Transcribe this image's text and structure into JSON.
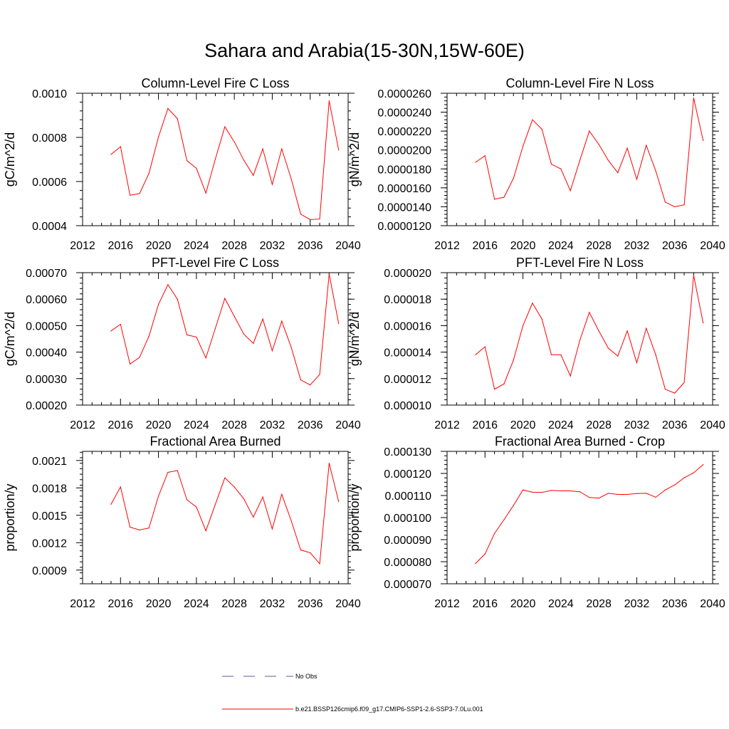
{
  "figure": {
    "title": "Sahara and Arabia(15-30N,15W-60E)",
    "line_color": "#ff0000",
    "obs_color": "#5a5aa8"
  },
  "legend": {
    "obs_label": "No Obs",
    "model_label": "b.e21.BSSP126cmip6.f09_g17.CMIP6-SSP1-2.6-SSP3-7.0Lu.001"
  },
  "chart_data": [
    {
      "type": "line",
      "title": "Column-Level Fire C Loss",
      "ylabel": "gC/m^2/d",
      "xlim": [
        2012,
        2040
      ],
      "xticks": [
        "2012",
        "2016",
        "2020",
        "2024",
        "2028",
        "2032",
        "2036",
        "2040"
      ],
      "ylim": [
        0.0004,
        0.001
      ],
      "yticks": [
        "0.0004",
        "0.0006",
        "0.0008",
        "0.0010"
      ],
      "x": [
        2015,
        2016,
        2017,
        2018,
        2019,
        2020,
        2021,
        2022,
        2023,
        2024,
        2025,
        2026,
        2027,
        2028,
        2029,
        2030,
        2031,
        2032,
        2033,
        2034,
        2035,
        2036,
        2037,
        2038,
        2039
      ],
      "series": [
        {
          "values": [
            0.000723,
            0.000758,
            0.000538,
            0.000545,
            0.000637,
            0.000802,
            0.000931,
            0.000885,
            0.000695,
            0.00066,
            0.000548,
            0.000702,
            0.000848,
            0.00078,
            0.000697,
            0.000628,
            0.000748,
            0.000587,
            0.000748,
            0.000612,
            0.000452,
            0.000428,
            0.00043,
            0.000966,
            0.000743
          ]
        }
      ]
    },
    {
      "type": "line",
      "title": "Column-Level Fire N Loss",
      "ylabel": "gN/m^2/d",
      "xlim": [
        2012,
        2040
      ],
      "xticks": [
        "2012",
        "2016",
        "2020",
        "2024",
        "2028",
        "2032",
        "2036",
        "2040"
      ],
      "ylim": [
        1.2e-05,
        2.6e-05
      ],
      "yticks": [
        "0.0000120",
        "0.0000140",
        "0.0000160",
        "0.0000180",
        "0.0000200",
        "0.0000220",
        "0.0000240",
        "0.0000260"
      ],
      "x": [
        2015,
        2016,
        2017,
        2018,
        2019,
        2020,
        2021,
        2022,
        2023,
        2024,
        2025,
        2026,
        2027,
        2028,
        2029,
        2030,
        2031,
        2032,
        2033,
        2034,
        2035,
        2036,
        2037,
        2038,
        2039
      ],
      "series": [
        {
          "values": [
            1.87e-05,
            1.94e-05,
            1.48e-05,
            1.5e-05,
            1.7e-05,
            2.04e-05,
            2.32e-05,
            2.22e-05,
            1.85e-05,
            1.8e-05,
            1.57e-05,
            1.89e-05,
            2.2e-05,
            2.06e-05,
            1.89e-05,
            1.76e-05,
            2.02e-05,
            1.69e-05,
            2.05e-05,
            1.78e-05,
            1.45e-05,
            1.4e-05,
            1.42e-05,
            2.55e-05,
            2.1e-05
          ]
        }
      ]
    },
    {
      "type": "line",
      "title": "PFT-Level Fire C Loss",
      "ylabel": "gC/m^2/d",
      "xlim": [
        2012,
        2040
      ],
      "xticks": [
        "2012",
        "2016",
        "2020",
        "2024",
        "2028",
        "2032",
        "2036",
        "2040"
      ],
      "ylim": [
        0.0002,
        0.0007
      ],
      "yticks": [
        "0.00020",
        "0.00030",
        "0.00040",
        "0.00050",
        "0.00060",
        "0.00070"
      ],
      "x": [
        2015,
        2016,
        2017,
        2018,
        2019,
        2020,
        2021,
        2022,
        2023,
        2024,
        2025,
        2026,
        2027,
        2028,
        2029,
        2030,
        2031,
        2032,
        2033,
        2034,
        2035,
        2036,
        2037,
        2038,
        2039
      ],
      "series": [
        {
          "values": [
            0.00048,
            0.000505,
            0.000355,
            0.00038,
            0.00046,
            0.00058,
            0.000655,
            0.0006,
            0.000465,
            0.000457,
            0.000378,
            0.00049,
            0.000603,
            0.000535,
            0.000468,
            0.000433,
            0.000525,
            0.000405,
            0.000517,
            0.000418,
            0.000295,
            0.000276,
            0.000315,
            0.000695,
            0.000508
          ]
        }
      ]
    },
    {
      "type": "line",
      "title": "PFT-Level Fire N Loss",
      "ylabel": "gN/m^2/d",
      "xlim": [
        2012,
        2040
      ],
      "xticks": [
        "2012",
        "2016",
        "2020",
        "2024",
        "2028",
        "2032",
        "2036",
        "2040"
      ],
      "ylim": [
        1e-05,
        2e-05
      ],
      "yticks": [
        "0.000010",
        "0.000012",
        "0.000014",
        "0.000016",
        "0.000018",
        "0.000020"
      ],
      "x": [
        2015,
        2016,
        2017,
        2018,
        2019,
        2020,
        2021,
        2022,
        2023,
        2024,
        2025,
        2026,
        2027,
        2028,
        2029,
        2030,
        2031,
        2032,
        2033,
        2034,
        2035,
        2036,
        2037,
        2038,
        2039
      ],
      "series": [
        {
          "values": [
            1.38e-05,
            1.44e-05,
            1.12e-05,
            1.16e-05,
            1.34e-05,
            1.6e-05,
            1.77e-05,
            1.65e-05,
            1.38e-05,
            1.38e-05,
            1.22e-05,
            1.49e-05,
            1.7e-05,
            1.56e-05,
            1.43e-05,
            1.37e-05,
            1.56e-05,
            1.32e-05,
            1.58e-05,
            1.38e-05,
            1.12e-05,
            1.09e-05,
            1.17e-05,
            1.98e-05,
            1.62e-05
          ]
        }
      ]
    },
    {
      "type": "line",
      "title": "Fractional Area Burned",
      "ylabel": "proportion/y",
      "xlim": [
        2012,
        2040
      ],
      "xticks": [
        "2012",
        "2016",
        "2020",
        "2024",
        "2028",
        "2032",
        "2036",
        "2040"
      ],
      "ylim": [
        0.00075,
        0.0022
      ],
      "yticks": [
        "0.0009",
        "0.0012",
        "0.0015",
        "0.0018",
        "0.0021"
      ],
      "x": [
        2015,
        2016,
        2017,
        2018,
        2019,
        2020,
        2021,
        2022,
        2023,
        2024,
        2025,
        2026,
        2027,
        2028,
        2029,
        2030,
        2031,
        2032,
        2033,
        2034,
        2035,
        2036,
        2037,
        2038,
        2039
      ],
      "series": [
        {
          "values": [
            0.00162,
            0.00181,
            0.00137,
            0.00134,
            0.00136,
            0.00171,
            0.00197,
            0.00199,
            0.00167,
            0.00159,
            0.00133,
            0.00162,
            0.00191,
            0.00181,
            0.00168,
            0.00148,
            0.0017,
            0.00135,
            0.00173,
            0.00144,
            0.00112,
            0.00109,
            0.00097,
            0.00207,
            0.00165
          ]
        }
      ]
    },
    {
      "type": "line",
      "title": "Fractional Area Burned - Crop",
      "ylabel": "proportion/y",
      "xlim": [
        2012,
        2040
      ],
      "xticks": [
        "2012",
        "2016",
        "2020",
        "2024",
        "2028",
        "2032",
        "2036",
        "2040"
      ],
      "ylim": [
        7e-05,
        0.00013
      ],
      "yticks": [
        "0.000070",
        "0.000080",
        "0.000090",
        "0.000100",
        "0.000110",
        "0.000120",
        "0.000130"
      ],
      "x": [
        2015,
        2016,
        2017,
        2018,
        2019,
        2020,
        2021,
        2022,
        2023,
        2024,
        2025,
        2026,
        2027,
        2028,
        2029,
        2030,
        2031,
        2032,
        2033,
        2034,
        2035,
        2036,
        2037,
        2038,
        2039
      ],
      "series": [
        {
          "values": [
            7.92e-05,
            8.35e-05,
            9.28e-05,
            9.9e-05,
            0.0001055,
            0.0001125,
            0.0001115,
            0.0001114,
            0.0001123,
            0.0001121,
            0.0001121,
            0.0001117,
            0.0001091,
            0.0001088,
            0.000111,
            0.0001105,
            0.0001105,
            0.0001109,
            0.000111,
            0.0001092,
            0.0001125,
            0.0001148,
            0.000118,
            0.0001203,
            0.000124
          ]
        }
      ]
    }
  ]
}
